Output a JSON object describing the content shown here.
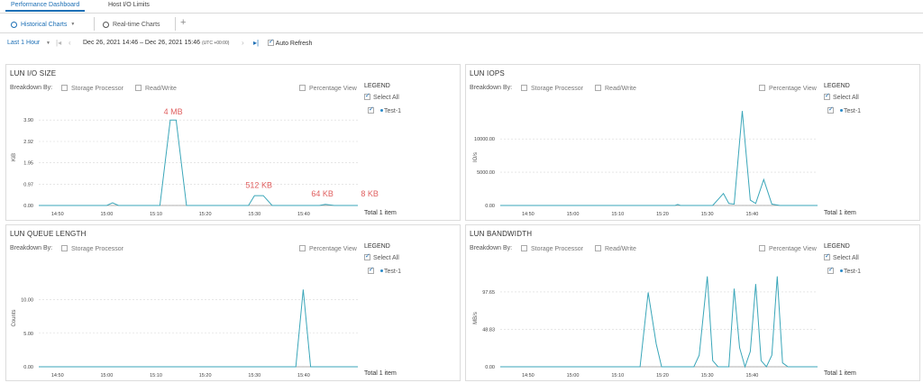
{
  "tabs": {
    "top": [
      {
        "label": "Performance Dashboard",
        "active": true
      },
      {
        "label": "Host I/O Limits",
        "active": false
      }
    ],
    "sub": [
      {
        "label": "Historical Charts",
        "active": true
      },
      {
        "label": "Real-time Charts",
        "active": false
      }
    ],
    "add_symbol": "+"
  },
  "toolbar": {
    "time_window": "Last 1 Hour",
    "range_start": "Dec 26, 2021 14:46",
    "range_sep": "–",
    "range_end": "Dec 26, 2021 15:46",
    "timezone": "(UTC +00:00)",
    "auto_refresh_label": "Auto Refresh",
    "auto_refresh_checked": true
  },
  "common": {
    "breakdown_label": "Breakdown By:",
    "storage_processor": "Storage Processor",
    "read_write": "Read/Write",
    "percentage_view": "Percentage View",
    "legend_title": "LEGEND",
    "select_all": "Select All",
    "series_name": "Test-1",
    "total": "Total 1 item"
  },
  "colors": {
    "accent": "#1c6fb5",
    "line": "#3aa6b9",
    "annotation": "#e06060",
    "grid": "#d8d8d8"
  },
  "panels": [
    {
      "title": "LUN I/O SIZE",
      "show_read_write": true,
      "chart_data": {
        "type": "line",
        "ylabel": "KiB",
        "yticks": [
          "3.90",
          "2.92",
          "1.95",
          "0.97",
          "0.00"
        ],
        "ylim": [
          0,
          4.4
        ],
        "xticks": [
          "14:50",
          "15:00",
          "15:10",
          "15:20",
          "15:30",
          "15:40"
        ],
        "xlim": [
          14.77,
          15.85
        ],
        "series": [
          {
            "name": "Test-1",
            "points": [
              [
                14.77,
                0
              ],
              [
                15.0,
                0
              ],
              [
                15.02,
                0.12
              ],
              [
                15.04,
                0
              ],
              [
                15.18,
                0
              ],
              [
                15.215,
                3.9
              ],
              [
                15.235,
                3.9
              ],
              [
                15.27,
                0
              ],
              [
                15.48,
                0
              ],
              [
                15.5,
                0.45
              ],
              [
                15.53,
                0.45
              ],
              [
                15.56,
                0
              ],
              [
                15.72,
                0
              ],
              [
                15.74,
                0.05
              ],
              [
                15.77,
                0
              ],
              [
                15.85,
                0
              ]
            ]
          }
        ],
        "annotations": [
          {
            "text": "4 MB",
            "x": 15.225,
            "y": 4.15
          },
          {
            "text": "512 KB",
            "x": 15.515,
            "y": 0.8
          },
          {
            "text": "64 KB",
            "x": 15.73,
            "y": 0.42
          },
          {
            "text": "8 KB",
            "x": 15.89,
            "y": 0.42
          }
        ]
      }
    },
    {
      "title": "LUN IOPS",
      "show_read_write": true,
      "chart_data": {
        "type": "line",
        "ylabel": "IO/s",
        "yticks": [
          "10000.00",
          "5000.00",
          "0.00"
        ],
        "ylim": [
          0,
          14500
        ],
        "xticks": [
          "14:50",
          "15:00",
          "15:10",
          "15:20",
          "15:30",
          "15:40"
        ],
        "xlim": [
          14.73,
          15.91
        ],
        "series": [
          {
            "name": "Test-1",
            "points": [
              [
                14.73,
                0
              ],
              [
                15.38,
                0
              ],
              [
                15.39,
                150
              ],
              [
                15.4,
                0
              ],
              [
                15.52,
                0
              ],
              [
                15.56,
                1800
              ],
              [
                15.58,
                300
              ],
              [
                15.6,
                200
              ],
              [
                15.63,
                14200
              ],
              [
                15.66,
                800
              ],
              [
                15.68,
                300
              ],
              [
                15.71,
                3900
              ],
              [
                15.74,
                200
              ],
              [
                15.77,
                0
              ],
              [
                15.91,
                0
              ]
            ]
          }
        ],
        "annotations": []
      }
    },
    {
      "title": "LUN QUEUE LENGTH",
      "show_read_write": false,
      "chart_data": {
        "type": "line",
        "ylabel": "Counts",
        "yticks": [
          "10.00",
          "5.00",
          "0.00"
        ],
        "ylim": [
          0,
          14.5
        ],
        "xticks": [
          "14:50",
          "15:00",
          "15:10",
          "15:20",
          "15:30",
          "15:40"
        ],
        "xlim": [
          14.77,
          15.85
        ],
        "series": [
          {
            "name": "Test-1",
            "points": [
              [
                14.77,
                0
              ],
              [
                15.64,
                0
              ],
              [
                15.665,
                11.5
              ],
              [
                15.69,
                0
              ],
              [
                15.85,
                0
              ]
            ]
          }
        ],
        "annotations": []
      }
    },
    {
      "title": "LUN BANDWIDTH",
      "show_read_write": true,
      "chart_data": {
        "type": "line",
        "ylabel": "MB/s",
        "yticks": [
          "97.65",
          "48.83",
          "0.00"
        ],
        "ylim": [
          0,
          127
        ],
        "xticks": [
          "14:50",
          "15:00",
          "15:10",
          "15:20",
          "15:30",
          "15:40"
        ],
        "xlim": [
          14.73,
          15.91
        ],
        "series": [
          {
            "name": "Test-1",
            "points": [
              [
                14.73,
                0
              ],
              [
                15.25,
                0
              ],
              [
                15.28,
                97
              ],
              [
                15.31,
                30
              ],
              [
                15.33,
                0
              ],
              [
                15.45,
                0
              ],
              [
                15.47,
                15
              ],
              [
                15.5,
                118
              ],
              [
                15.52,
                8
              ],
              [
                15.54,
                0
              ],
              [
                15.58,
                0
              ],
              [
                15.6,
                102
              ],
              [
                15.62,
                25
              ],
              [
                15.64,
                0
              ],
              [
                15.66,
                20
              ],
              [
                15.68,
                108
              ],
              [
                15.7,
                8
              ],
              [
                15.72,
                0
              ],
              [
                15.74,
                15
              ],
              [
                15.76,
                118
              ],
              [
                15.78,
                5
              ],
              [
                15.8,
                0
              ],
              [
                15.91,
                0
              ]
            ]
          }
        ],
        "annotations": []
      }
    }
  ]
}
